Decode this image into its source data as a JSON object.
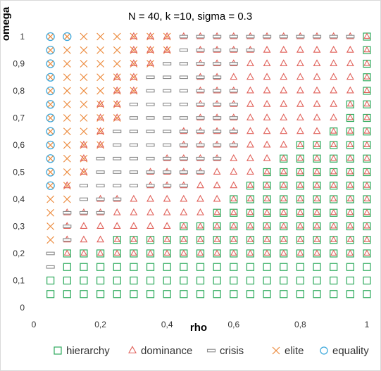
{
  "chart_data": {
    "type": "scatter",
    "title": "N = 40, k =10, sigma = 0.3",
    "xlabel": "rho",
    "ylabel": "omega",
    "xlim": [
      0,
      1
    ],
    "ylim": [
      0,
      1
    ],
    "x_ticks": [
      "0",
      "0,2",
      "0,4",
      "0,6",
      "0,8",
      "1"
    ],
    "y_ticks": [
      "0",
      "0,1",
      "0,2",
      "0,3",
      "0,4",
      "0,5",
      "0,6",
      "0,7",
      "0,8",
      "0,9",
      "1"
    ],
    "grid": false,
    "legend_position": "bottom",
    "x_values": [
      0.05,
      0.1,
      0.15,
      0.2,
      0.25,
      0.3,
      0.35,
      0.4,
      0.45,
      0.5,
      0.55,
      0.6,
      0.65,
      0.7,
      0.75,
      0.8,
      0.85,
      0.9,
      0.95,
      1.0
    ],
    "y_values": [
      0.05,
      0.1,
      0.15,
      0.2,
      0.25,
      0.3,
      0.35,
      0.4,
      0.45,
      0.5,
      0.55,
      0.6,
      0.65,
      0.7,
      0.75,
      0.8,
      0.85,
      0.9,
      0.95,
      1.0
    ],
    "series": [
      {
        "name": "hierarchy",
        "marker": "square",
        "color": "#2eab5d"
      },
      {
        "name": "dominance",
        "marker": "triangle",
        "color": "#e0615a"
      },
      {
        "name": "crisis",
        "marker": "dash",
        "color": "#8c8c8c"
      },
      {
        "name": "elite",
        "marker": "x",
        "color": "#ec8a3c"
      },
      {
        "name": "equality",
        "marker": "circle",
        "color": "#3fa9dc"
      }
    ],
    "grid_rows_note": "rows from omega=1.0 down to 0.05; columns rho=0.05..1.0; each char: H=hierarchy+dominance, S=hierarchy, D=dominance, B=crisis+dominance, C=crisis, E=elite, X=elite+dominance, Q=equality+elite, .=empty",
    "grid_rows": [
      "QQEEEXXXBBBBBBBBBBBH",
      "QEEEEXXXCBBBBDDDDDDH",
      "QEEEEXXCCBBBDDDDDDDH",
      "QEEEXXCCCBBDDDDDDDDH",
      "QEEEXXCCCBBBDDDDDDDH",
      "QEEXXCCCCBBBDDDDDDHH",
      "QEEXXCCCCBBBDDDDDDHH",
      "QEEXCCCCBBBBDDDDDHHH",
      "QEXXCCCCBBBBDDDHHHHH",
      "QEXCCCCBBBBDDDHHHHHH",
      "QEXCCCBBBBDDDHHHHHHH",
      "QXCCCCBBBDDDHHHHHHHH",
      "EECBBDDDDDDHHHHHHHHH",
      "EBBBDDDDDDHHHHHHHHHH",
      "EBDDDDDDHHHHHHHHHHHH",
      "EBDDHHHHHHHHHHHHHHHH",
      "CHHHHHHHHHHHHHHHHHHH",
      "CSSSSSSSSSSSSSSSSSSS",
      "SSSSSSSSSSSSSSSSSSSS",
      "SSSSSSSSSSSSSSSSSSSS"
    ]
  }
}
